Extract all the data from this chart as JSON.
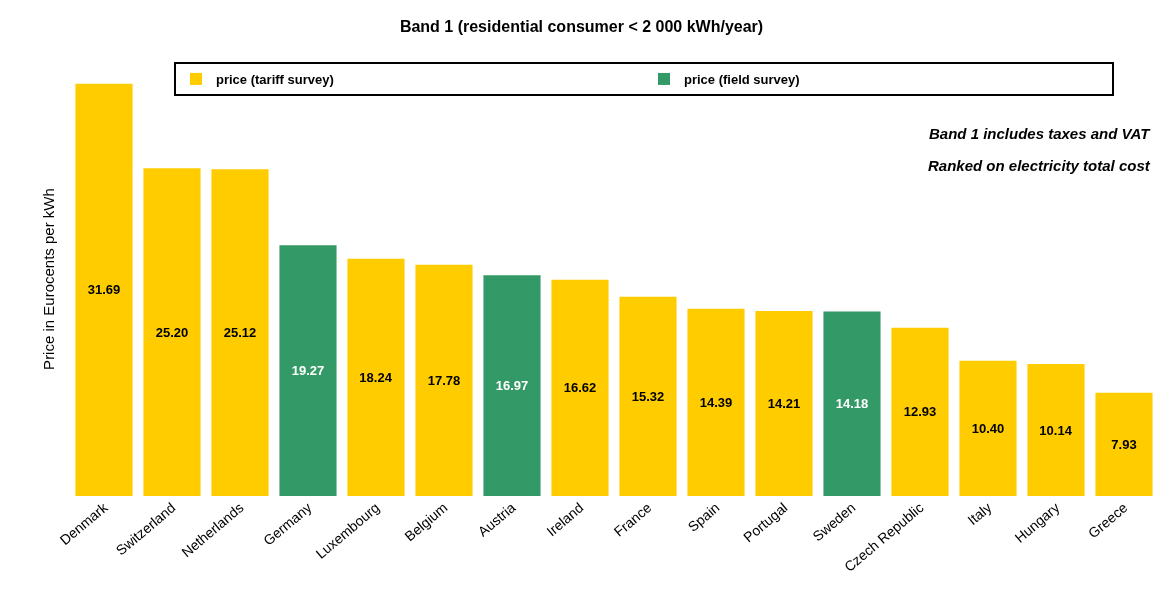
{
  "chart_data": {
    "type": "bar",
    "title": "Band 1 (residential consumer < 2 000 kWh/year)",
    "ylabel": "Price in Eurocents per kWh",
    "categories": [
      "Denmark",
      "Switzerland",
      "Netherlands",
      "Germany",
      "Luxembourg",
      "Belgium",
      "Austria",
      "Ireland",
      "France",
      "Spain",
      "Portugal",
      "Sweden",
      "Czech Republic",
      "Italy",
      "Hungary",
      "Greece"
    ],
    "series": [
      {
        "name": "price (tariff survey)",
        "color": "#ffcc00",
        "values": [
          31.69,
          25.2,
          25.12,
          null,
          18.24,
          17.78,
          null,
          16.62,
          15.32,
          14.39,
          14.21,
          null,
          12.93,
          10.4,
          10.14,
          7.93
        ],
        "value_labels": [
          "31.69",
          "25.20",
          "25.12",
          null,
          "18.24",
          "17.78",
          null,
          "16.62",
          "15.32",
          "14.39",
          "14.21",
          null,
          "12.93",
          "10.40",
          "10.14",
          "7.93"
        ]
      },
      {
        "name": "price (field survey)",
        "color": "#339966",
        "values": [
          null,
          null,
          null,
          19.27,
          null,
          null,
          16.97,
          null,
          null,
          null,
          null,
          14.18,
          null,
          null,
          null,
          null
        ],
        "value_labels": [
          null,
          null,
          null,
          "19.27",
          null,
          null,
          "16.97",
          null,
          null,
          null,
          null,
          "14.18",
          null,
          null,
          null,
          null
        ]
      }
    ],
    "legend": "top",
    "grid": false,
    "tick_labels": "x",
    "annotations": [
      "Band 1 includes taxes and VAT",
      "Ranked on electricity total cost"
    ]
  }
}
